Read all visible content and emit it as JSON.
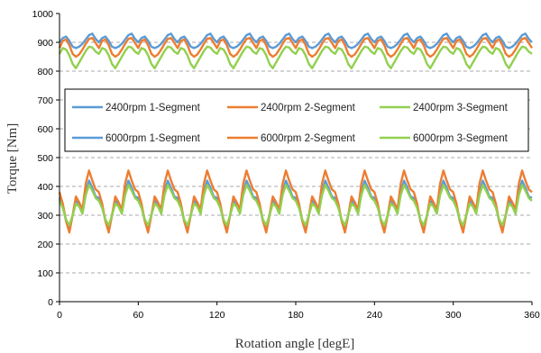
{
  "chart_data": {
    "type": "line",
    "title": "",
    "xlabel": "Rotation angle [degE]",
    "ylabel": "Torque [Nm]",
    "xlim": [
      0,
      360
    ],
    "ylim": [
      0,
      1000
    ],
    "xticks": [
      0,
      60,
      120,
      180,
      240,
      300,
      360
    ],
    "yticks": [
      0,
      100,
      200,
      300,
      400,
      500,
      600,
      700,
      800,
      900,
      1000
    ],
    "gridlines": "horizontal dashed",
    "legend_position": "center",
    "period_degE": 30,
    "series": [
      {
        "name": "2400rpm 1-Segment",
        "color": "#5b9bd5",
        "x": [
          0,
          2.5,
          5,
          7.5,
          10,
          12.5,
          15,
          17.5,
          20,
          22.5,
          25,
          27.5,
          30
        ],
        "y": [
          900,
          915,
          920,
          905,
          885,
          880,
          885,
          895,
          910,
          925,
          930,
          912,
          900
        ]
      },
      {
        "name": "2400rpm 2-Segment",
        "color": "#ed7d31",
        "x": [
          0,
          2.5,
          5,
          7.5,
          10,
          12.5,
          15,
          17.5,
          20,
          22.5,
          25,
          27.5,
          30
        ],
        "y": [
          880,
          905,
          910,
          890,
          860,
          850,
          858,
          875,
          895,
          912,
          915,
          898,
          880
        ]
      },
      {
        "name": "2400rpm 3-Segment",
        "color": "#92d050",
        "x": [
          0,
          2.5,
          5,
          7.5,
          10,
          12.5,
          15,
          17.5,
          20,
          22.5,
          25,
          27.5,
          30
        ],
        "y": [
          860,
          880,
          875,
          855,
          825,
          810,
          830,
          850,
          870,
          885,
          882,
          868,
          860
        ]
      },
      {
        "name": "6000rpm 1-Segment",
        "color": "#5b9bd5",
        "x": [
          0,
          2.5,
          5,
          7.5,
          10,
          12.5,
          15,
          17.5,
          20,
          22.5,
          25,
          27.5,
          30
        ],
        "y": [
          360,
          330,
          280,
          250,
          300,
          350,
          340,
          310,
          380,
          420,
          395,
          365,
          360
        ]
      },
      {
        "name": "6000rpm 2-Segment",
        "color": "#ed7d31",
        "x": [
          0,
          2.5,
          5,
          7.5,
          10,
          12.5,
          15,
          17.5,
          20,
          22.5,
          25,
          27.5,
          30
        ],
        "y": [
          380,
          340,
          280,
          240,
          300,
          365,
          345,
          320,
          410,
          455,
          420,
          390,
          380
        ]
      },
      {
        "name": "6000rpm 3-Segment",
        "color": "#92d050",
        "x": [
          0,
          2.5,
          5,
          7.5,
          10,
          12.5,
          15,
          17.5,
          20,
          22.5,
          25,
          27.5,
          30
        ],
        "y": [
          350,
          325,
          285,
          265,
          300,
          340,
          330,
          305,
          370,
          405,
          385,
          360,
          350
        ]
      }
    ]
  }
}
